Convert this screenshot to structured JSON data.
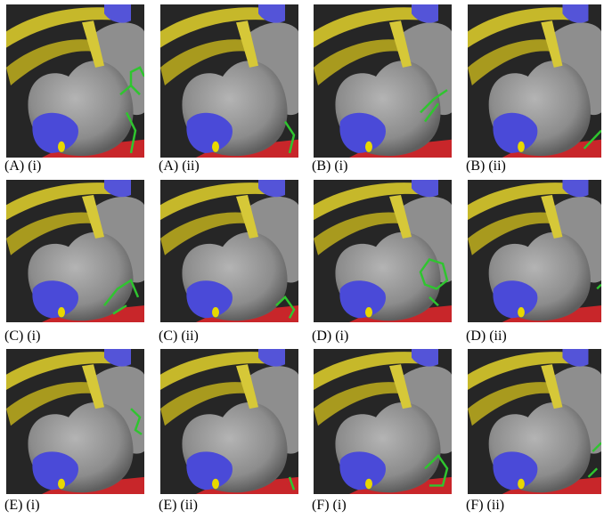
{
  "panels": [
    {
      "label": "(A) (i)"
    },
    {
      "label": "(A) (ii)"
    },
    {
      "label": "(B) (i)"
    },
    {
      "label": "(B) (ii)"
    },
    {
      "label": "(C) (i)"
    },
    {
      "label": "(C) (ii)"
    },
    {
      "label": "(D) (i)"
    },
    {
      "label": "(D) (ii)"
    },
    {
      "label": "(E) (i)"
    },
    {
      "label": "(E) (ii)"
    },
    {
      "label": "(F) (i)"
    },
    {
      "label": "(F) (ii)"
    }
  ]
}
